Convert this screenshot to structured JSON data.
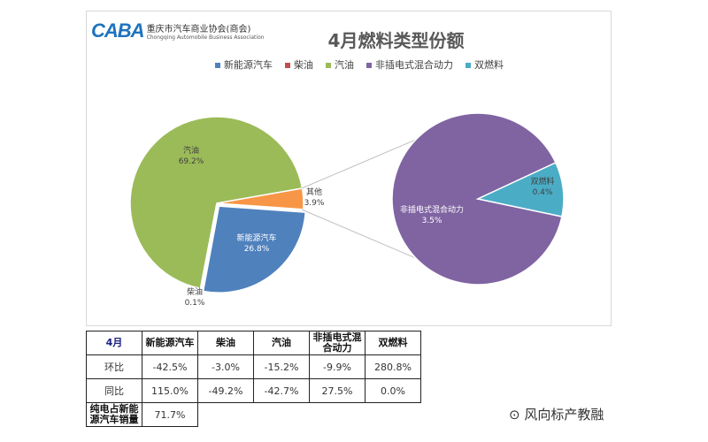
{
  "logo": {
    "mark": "CABA",
    "name_cn": "重庆市汽车商业协会(商会)",
    "name_en": "Chongqing Automobile Business Association"
  },
  "chart_data": [
    {
      "type": "pie",
      "title": "4月燃料类型份额",
      "legend": [
        "新能源汽车",
        "柴油",
        "汽油",
        "非插电式混合动力",
        "双燃料"
      ],
      "legend_placement": "top",
      "slices": [
        {
          "label": "汽油",
          "value": 69.2,
          "color": "#9bbb59"
        },
        {
          "label": "新能源汽车",
          "value": 26.8,
          "color": "#4f81bd"
        },
        {
          "label": "柴油",
          "value": 0.1,
          "color": "#c0504d"
        },
        {
          "label": "其他",
          "value": 3.9,
          "color": "#f79646"
        }
      ],
      "legend_colors": [
        "#4f81bd",
        "#c0504d",
        "#9bbb59",
        "#8064a2",
        "#4bacc6"
      ]
    },
    {
      "type": "pie",
      "title": "",
      "slices": [
        {
          "label": "非插电式混合动力",
          "value": 3.5,
          "color": "#8064a2"
        },
        {
          "label": "双燃料",
          "value": 0.4,
          "color": "#4bacc6"
        }
      ]
    }
  ],
  "table": {
    "header": [
      "4月",
      "新能源汽车",
      "柴油",
      "汽油",
      "非插电式混合动力",
      "双燃料"
    ],
    "rows": [
      [
        "环比",
        "-42.5%",
        "-3.0%",
        "-15.2%",
        "-9.9%",
        "280.8%"
      ],
      [
        "同比",
        "115.0%",
        "-49.2%",
        "-42.7%",
        "27.5%",
        "0.0%"
      ]
    ],
    "footer": {
      "label": "纯电占新能源汽车销量",
      "value": "71.7%"
    }
  },
  "watermark": "风向标产教融"
}
